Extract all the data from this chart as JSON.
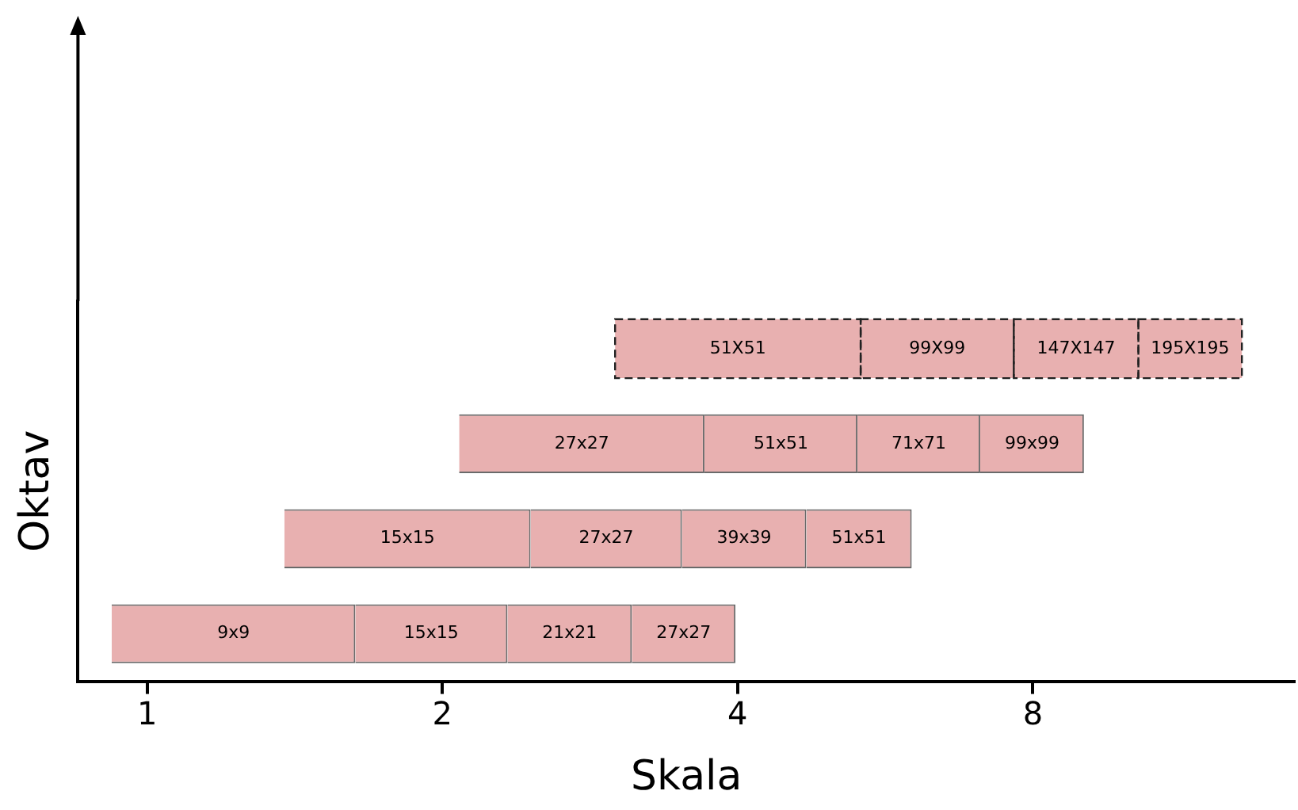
{
  "chart_data": {
    "type": "bar",
    "orientation": "horizontal",
    "xlabel": "Skala",
    "ylabel": "Oktav",
    "categories": [
      null,
      null,
      null,
      null
    ],
    "log": "x",
    "xlim": [
      0.85,
      14.8
    ],
    "xticks": [
      1,
      2,
      4,
      8
    ],
    "grid": false,
    "legend": false,
    "tick_labels": "x",
    "series": [
      {
        "name": "51X51",
        "color": "#e8b0b0",
        "line_style": "dashed",
        "base": [
          3.0,
          null,
          null,
          null
        ],
        "values": [
          2.34,
          null,
          null,
          null
        ]
      },
      {
        "name": "99X99",
        "color": "#e8b0b0",
        "line_style": "dashed",
        "base": [
          5.34,
          null,
          null,
          null
        ],
        "values": [
          2.31,
          null,
          null,
          null
        ]
      },
      {
        "name": "147X147",
        "color": "#e8b0b0",
        "line_style": "dashed",
        "base": [
          7.65,
          null,
          null,
          null
        ],
        "values": [
          2.6,
          null,
          null,
          null
        ]
      },
      {
        "name": "195X195",
        "color": "#e8b0b0",
        "line_style": "dashed",
        "base": [
          10.25,
          null,
          null,
          null
        ],
        "values": [
          2.82,
          null,
          null,
          null
        ]
      },
      {
        "name": "27x27",
        "color": "#e8b0b0",
        "base": [
          null,
          2.08,
          null,
          null
        ],
        "values": [
          null,
          1.62,
          null,
          null
        ]
      },
      {
        "name": "51x51",
        "color": "#e8b0b0",
        "base": [
          null,
          3.7,
          null,
          null
        ],
        "values": [
          null,
          1.6,
          null,
          null
        ]
      },
      {
        "name": "71x71",
        "color": "#e8b0b0",
        "base": [
          null,
          5.3,
          null,
          null
        ],
        "values": [
          null,
          1.77,
          null,
          null
        ]
      },
      {
        "name": "99x99",
        "color": "#e8b0b0",
        "base": [
          null,
          7.07,
          null,
          null
        ],
        "values": [
          null,
          1.95,
          null,
          null
        ]
      },
      {
        "name": "15x15",
        "color": "#e8b0b0",
        "base": [
          null,
          null,
          1.38,
          null
        ],
        "values": [
          null,
          null,
          1.08,
          null
        ]
      },
      {
        "name": "27x27",
        "color": "#e8b0b0",
        "base": [
          null,
          null,
          2.46,
          null
        ],
        "values": [
          null,
          null,
          1.05,
          null
        ]
      },
      {
        "name": "39x39",
        "color": "#e8b0b0",
        "base": [
          null,
          null,
          3.51,
          null
        ],
        "values": [
          null,
          null,
          1.19,
          null
        ]
      },
      {
        "name": "51x51",
        "color": "#e8b0b0",
        "base": [
          null,
          null,
          4.7,
          null
        ],
        "values": [
          null,
          null,
          1.32,
          null
        ]
      },
      {
        "name": "9x9",
        "color": "#e8b0b0",
        "base": [
          null,
          null,
          null,
          0.92
        ],
        "values": [
          null,
          null,
          null,
          0.71
        ]
      },
      {
        "name": "15x15",
        "color": "#e8b0b0",
        "base": [
          null,
          null,
          null,
          1.63
        ],
        "values": [
          null,
          null,
          null,
          0.7
        ]
      },
      {
        "name": "21x21",
        "color": "#e8b0b0",
        "base": [
          null,
          null,
          null,
          2.33
        ],
        "values": [
          null,
          null,
          null,
          0.79
        ]
      },
      {
        "name": "27x27",
        "color": "#e8b0b0",
        "base": [
          null,
          null,
          null,
          3.12
        ],
        "values": [
          null,
          null,
          null,
          0.86
        ]
      }
    ]
  }
}
